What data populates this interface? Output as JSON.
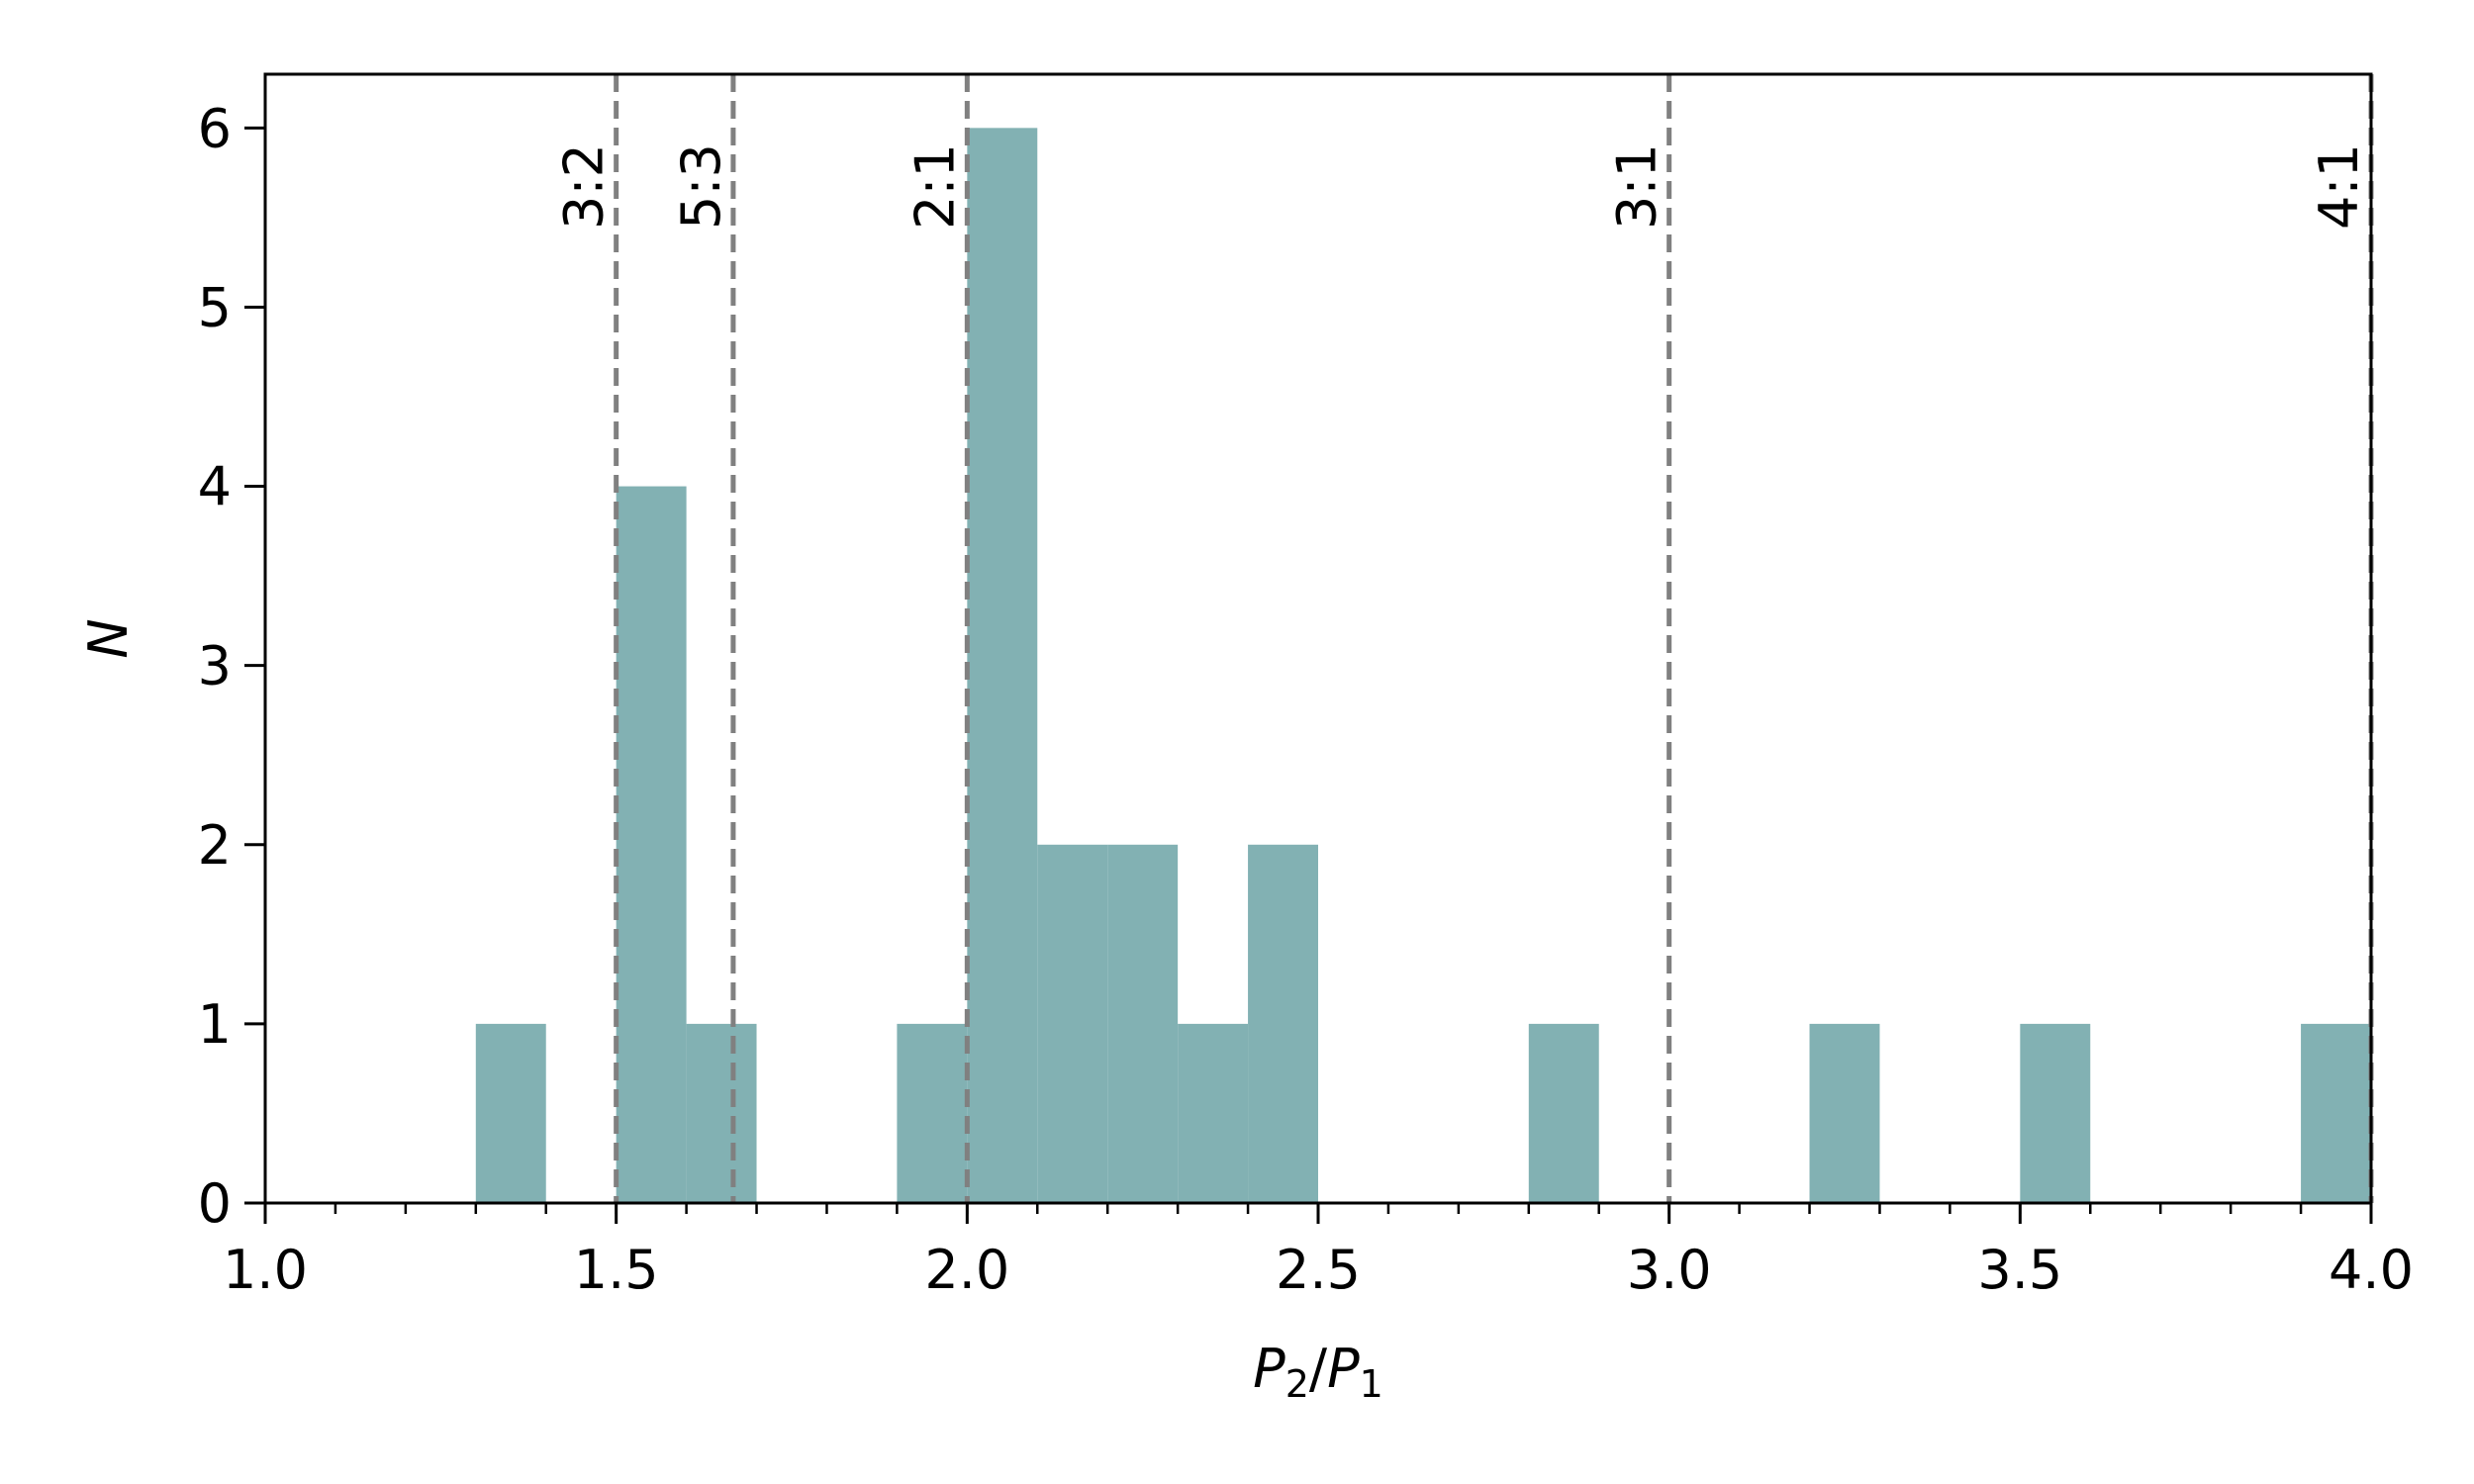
{
  "chart_data": {
    "type": "bar",
    "bin_width": 0.1,
    "bins": [
      {
        "x0": 1.3,
        "x1": 1.4,
        "count": 1
      },
      {
        "x0": 1.5,
        "x1": 1.6,
        "count": 4
      },
      {
        "x0": 1.6,
        "x1": 1.7,
        "count": 1
      },
      {
        "x0": 1.9,
        "x1": 2.0,
        "count": 1
      },
      {
        "x0": 2.0,
        "x1": 2.1,
        "count": 6
      },
      {
        "x0": 2.1,
        "x1": 2.2,
        "count": 2
      },
      {
        "x0": 2.2,
        "x1": 2.3,
        "count": 2
      },
      {
        "x0": 2.3,
        "x1": 2.4,
        "count": 1
      },
      {
        "x0": 2.4,
        "x1": 2.5,
        "count": 2
      },
      {
        "x0": 2.8,
        "x1": 2.9,
        "count": 1
      },
      {
        "x0": 3.2,
        "x1": 3.3,
        "count": 1
      },
      {
        "x0": 3.5,
        "x1": 3.6,
        "count": 1
      },
      {
        "x0": 3.9,
        "x1": 4.0,
        "count": 1
      }
    ],
    "bar_color": "#82b1b3",
    "xlim": [
      1.0,
      4.0
    ],
    "ylim": [
      0,
      6.3
    ],
    "x_ticks": [
      1.0,
      1.5,
      2.0,
      2.5,
      3.0,
      3.5,
      4.0
    ],
    "x_tick_labels": [
      "1.0",
      "1.5",
      "2.0",
      "2.5",
      "3.0",
      "3.5",
      "4.0"
    ],
    "x_minor_step": 0.1,
    "y_ticks": [
      0,
      1,
      2,
      3,
      4,
      5,
      6
    ],
    "y_tick_labels": [
      "0",
      "1",
      "2",
      "3",
      "4",
      "5",
      "6"
    ],
    "xlabel": {
      "main1": "P",
      "sub1": "2",
      "slash": "/",
      "main2": "P",
      "sub2": "1"
    },
    "ylabel": "N",
    "resonances": [
      {
        "x": 1.5,
        "label": "3:2"
      },
      {
        "x": 1.6667,
        "label": "5:3"
      },
      {
        "x": 2.0,
        "label": "2:1"
      },
      {
        "x": 3.0,
        "label": "3:1"
      },
      {
        "x": 4.0,
        "label": "4:1"
      }
    ],
    "resonance_color": "#808080",
    "grid": false,
    "legend": "none"
  }
}
